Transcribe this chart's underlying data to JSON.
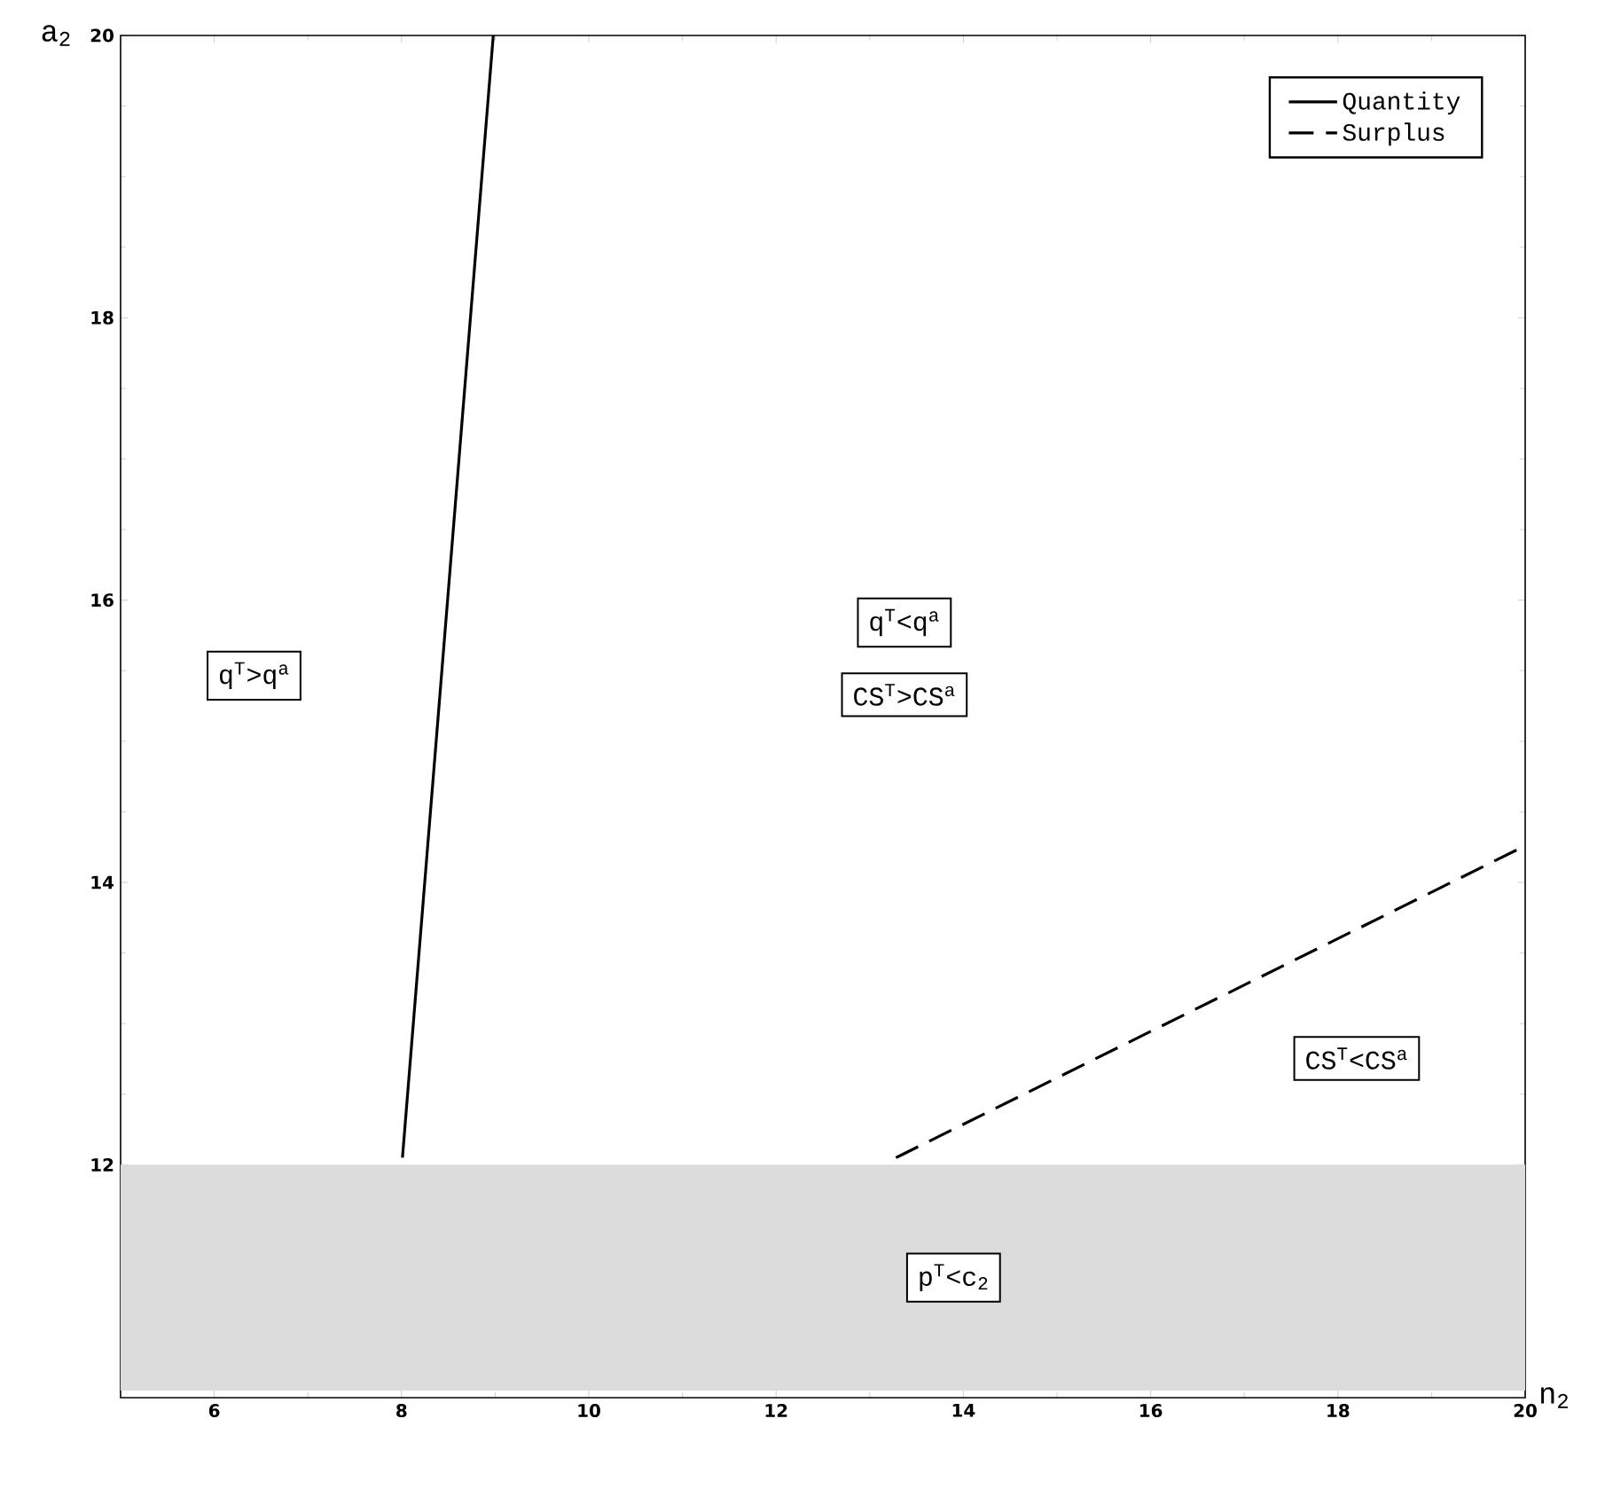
{
  "chart_data": {
    "type": "line",
    "xlabel": "n$_{2}$",
    "ylabel": "a$_{2}$",
    "xlim": [
      5,
      20
    ],
    "ylim": [
      10.35,
      20
    ],
    "xticks": [
      6,
      8,
      10,
      12,
      14,
      16,
      18,
      20
    ],
    "yticks": [
      12,
      14,
      16,
      18,
      20
    ],
    "series": [
      {
        "name": "Quantity",
        "color": "#000000",
        "line_style": "solid",
        "x": [
          8.01,
          8.98
        ],
        "values": [
          12.05,
          20
        ]
      },
      {
        "name": "Surplus",
        "color": "#000000",
        "line_style": "dashed",
        "x": [
          13.28,
          20
        ],
        "values": [
          12.05,
          14.26
        ]
      }
    ],
    "bands": [
      {
        "axis": "y",
        "from": 10.4,
        "to": 12,
        "color": "#dcdcdc",
        "label": "p$^{T}$<c$_{2}$"
      }
    ],
    "annotations": [
      "q$^{T}$>q$^{a}$",
      "q$^{T}$<q$^{a}$",
      "CS$^{T}$>CS$^{a}$",
      "CS$^{T}$<CS$^{a}$"
    ],
    "legend": "top right",
    "marker": "none",
    "grid": false
  }
}
